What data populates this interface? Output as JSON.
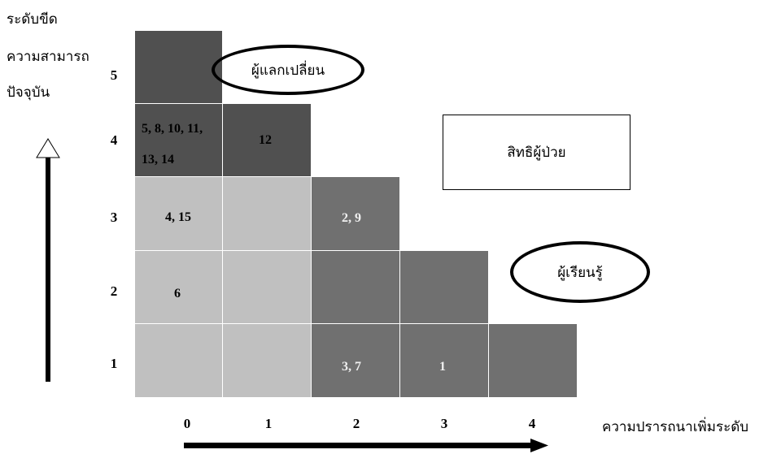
{
  "y_axis_title": [
    "ระดับขีด",
    "ความสามารถ",
    "ปัจจุบัน"
  ],
  "x_axis_title": "ความปรารถนาเพิ่มระดับ",
  "y_ticks": [
    "5",
    "4",
    "3",
    "2",
    "1"
  ],
  "x_ticks": [
    "0",
    "1",
    "2",
    "3",
    "4"
  ],
  "cell_labels": {
    "c0_4": "5, 8, 10, 11,",
    "c0_4b": "13, 14",
    "c1_4": "12",
    "c0_3": "4, 15",
    "c2_3": "2, 9",
    "c0_2": "6",
    "c2_1": "3, 7",
    "c3_1": "1"
  },
  "regions": {
    "exchanger": "ผู้แลกเปลี่ยน",
    "patient_rights": "สิทธิผู้ป่วย",
    "learner": "ผู้เรียนรู้"
  },
  "colors": {
    "light": "#c0c0c0",
    "dark": "#505050",
    "mid": "#707070"
  }
}
